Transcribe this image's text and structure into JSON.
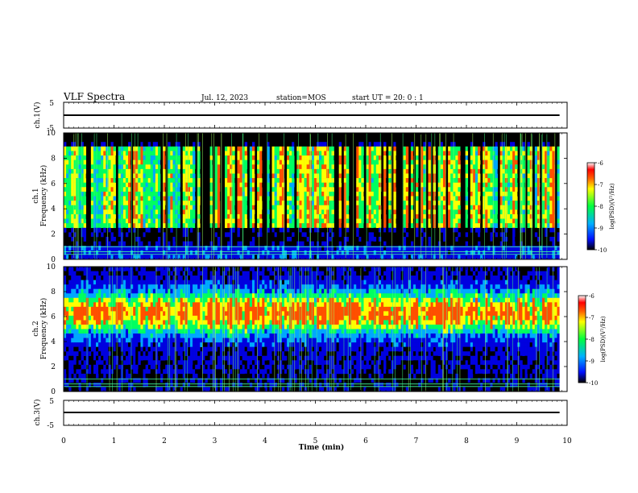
{
  "header": {
    "title": "VLF Spectra",
    "date": "Jul. 12, 2023",
    "station": "station=MOS",
    "start": "start UT =  20: 0 : 1"
  },
  "chart_data": [
    {
      "type": "line",
      "name": "ch1-waveform",
      "ylabel": "ch.1(V)",
      "ylim": [
        -5,
        5
      ],
      "yticks": [
        "5",
        "-5"
      ],
      "xlim": [
        0,
        10
      ],
      "x": [
        0,
        9.85
      ],
      "y": [
        0,
        0
      ]
    },
    {
      "type": "heatmap",
      "name": "ch1-spectrogram",
      "ylabel_line1": "ch.1",
      "ylabel_line2": "Frequency (kHz)",
      "ylim": [
        0,
        10
      ],
      "yticks": [
        "0",
        "2",
        "4",
        "6",
        "8",
        "10"
      ],
      "xlim": [
        0,
        9.85
      ],
      "colorbar": {
        "label": "log(PSD)(V²/Hz)",
        "range": [
          -10,
          -6
        ],
        "ticks": [
          "-6",
          "-7",
          "-8",
          "-9",
          "-10"
        ]
      }
    },
    {
      "type": "heatmap",
      "name": "ch2-spectrogram",
      "ylabel_line1": "ch.2",
      "ylabel_line2": "Frequency (kHz)",
      "ylim": [
        0,
        10
      ],
      "yticks": [
        "0",
        "2",
        "4",
        "6",
        "8",
        "10"
      ],
      "xlim": [
        0,
        9.85
      ],
      "colorbar": {
        "label": "log(PSD)(V²/Hz)",
        "range": [
          -10,
          -6
        ],
        "ticks": [
          "-6",
          "-7",
          "-8",
          "-9",
          "-10"
        ]
      }
    },
    {
      "type": "line",
      "name": "ch3-waveform",
      "ylabel": "ch.3(V)",
      "ylim": [
        -5,
        5
      ],
      "yticks": [
        "5",
        "-5"
      ],
      "xlim": [
        0,
        10
      ],
      "x": [
        0,
        9.85
      ],
      "y": [
        0,
        0
      ]
    }
  ],
  "xaxis": {
    "label": "Time (min)",
    "ticks": [
      "0",
      "1",
      "2",
      "3",
      "4",
      "5",
      "6",
      "7",
      "8",
      "9",
      "10"
    ],
    "range": [
      0,
      10
    ]
  }
}
